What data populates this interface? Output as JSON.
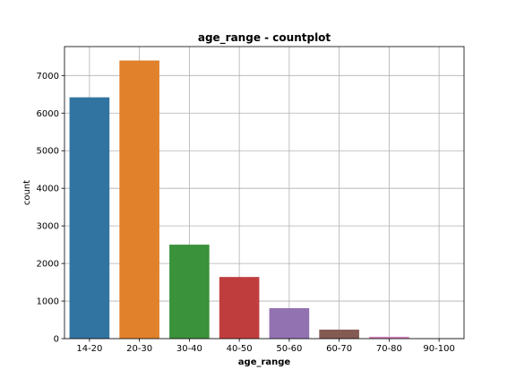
{
  "chart_data": {
    "type": "bar",
    "title": "age_range - countplot",
    "xlabel": "age_range",
    "ylabel": "count",
    "categories": [
      "14-20",
      "20-30",
      "30-40",
      "40-50",
      "50-60",
      "60-70",
      "70-80",
      "90-100"
    ],
    "values": [
      6420,
      7400,
      2500,
      1640,
      810,
      240,
      50,
      5
    ],
    "colors": [
      "#3274a1",
      "#e1812c",
      "#3a923a",
      "#c03d3e",
      "#9372b2",
      "#845b53",
      "#d684bd",
      "#7f7f7f"
    ],
    "ylim": [
      0,
      7770
    ],
    "yticks": [
      0,
      1000,
      2000,
      3000,
      4000,
      5000,
      6000,
      7000
    ],
    "grid": true,
    "legend": "none"
  }
}
